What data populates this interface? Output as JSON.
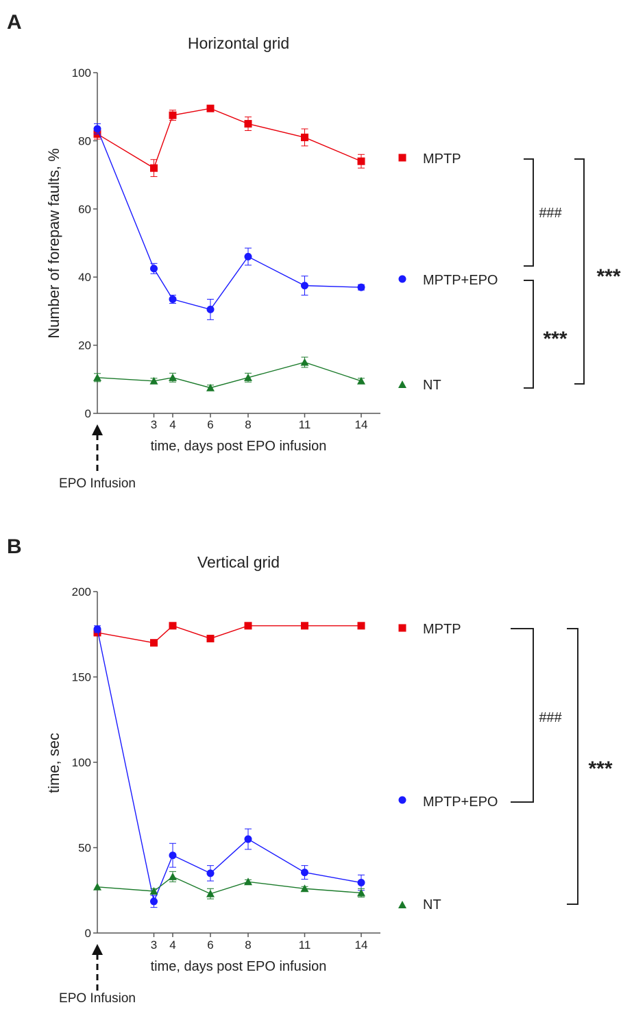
{
  "chart_data": [
    {
      "panel": "A",
      "type": "line",
      "title": "Horizontal grid",
      "xlabel": "time, days post EPO infusion",
      "ylabel": "Number of forepaw faults, %",
      "xlim": [
        0,
        15
      ],
      "ylim": [
        0,
        100
      ],
      "x_ticks": [
        3,
        4,
        6,
        8,
        11,
        14
      ],
      "y_ticks": [
        0,
        20,
        40,
        60,
        80,
        100
      ],
      "x": [
        0,
        3,
        4,
        6,
        8,
        11,
        14
      ],
      "series": [
        {
          "name": "MPTP",
          "color": "#e8000b",
          "marker": "square",
          "values": [
            82,
            72,
            87.5,
            89.5,
            85,
            81,
            74
          ],
          "errors": [
            1.5,
            2.5,
            1.5,
            0.8,
            2,
            2.5,
            2
          ]
        },
        {
          "name": "MPTP+EPO",
          "color": "#1a1aff",
          "marker": "circle",
          "values": [
            83.5,
            42.5,
            33.5,
            30.5,
            46,
            37.5,
            37
          ],
          "errors": [
            1.5,
            1.5,
            1.2,
            3,
            2.5,
            2.8,
            0.8
          ]
        },
        {
          "name": "NT",
          "color": "#1a7a2a",
          "marker": "triangle",
          "values": [
            10.5,
            9.5,
            10.5,
            7.5,
            10.5,
            15,
            9.5
          ],
          "errors": [
            1.2,
            0.8,
            1.3,
            0.8,
            1.3,
            1.5,
            0.8
          ]
        }
      ],
      "annotation": "EPO Infusion",
      "significance": {
        "inner_top": "###",
        "inner_bottom": "***",
        "outer": "***"
      }
    },
    {
      "panel": "B",
      "type": "line",
      "title": "Vertical grid",
      "xlabel": "time, days post EPO infusion",
      "ylabel": "time, sec",
      "xlim": [
        0,
        15
      ],
      "ylim": [
        0,
        200
      ],
      "x_ticks": [
        3,
        4,
        6,
        8,
        11,
        14
      ],
      "y_ticks": [
        0,
        50,
        100,
        150,
        200
      ],
      "x": [
        0,
        3,
        4,
        6,
        8,
        11,
        14
      ],
      "series": [
        {
          "name": "MPTP",
          "color": "#e8000b",
          "marker": "square",
          "values": [
            176,
            170,
            180,
            172.5,
            180,
            180,
            180
          ],
          "errors": [
            2,
            1.5,
            0,
            2,
            0,
            0,
            0
          ]
        },
        {
          "name": "MPTP+EPO",
          "color": "#1a1aff",
          "marker": "circle",
          "values": [
            178,
            18.5,
            45.5,
            35,
            55,
            35.5,
            29.5
          ],
          "errors": [
            2,
            3.5,
            7,
            4.5,
            6,
            4,
            4.5
          ]
        },
        {
          "name": "NT",
          "color": "#1a7a2a",
          "marker": "triangle",
          "values": [
            27,
            24.5,
            33,
            23,
            30,
            26,
            23.5
          ],
          "errors": [
            0,
            1.5,
            3,
            3,
            1.2,
            1.2,
            2.5
          ]
        }
      ],
      "annotation": "EPO Infusion",
      "significance": {
        "inner": "###",
        "outer": "***"
      }
    }
  ]
}
